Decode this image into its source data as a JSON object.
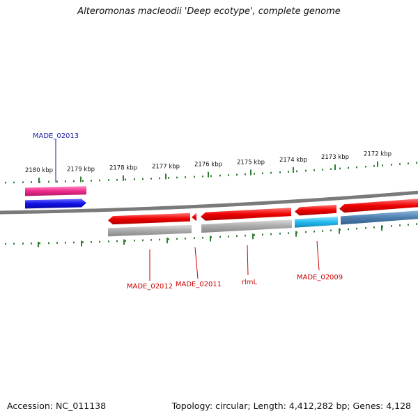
{
  "title": "Alteromonas macleodii 'Deep ecotype', complete genome",
  "accession": "Accession: NC_011138",
  "summary": "Topology: circular; Length: 4,412,282 bp; Genes: 4,128",
  "colors": {
    "backbone": "#7a7a7a",
    "tick": "#2e7d32",
    "label_red": "#cc0000",
    "label_blue": "#1a1aaa",
    "red": "#ee0000",
    "pink": "#ee2a8a",
    "blue": "#1010e6",
    "gray": "#aaaaaa",
    "cyan": "#22bbee",
    "steel": "#4e7fae"
  },
  "scale_labels": [
    "2180 kbp",
    "2179 kbp",
    "2178 kbp",
    "2177 kbp",
    "2176 kbp",
    "2175 kbp",
    "2174 kbp",
    "2173 kbp",
    "2172 kbp"
  ],
  "gene_labels": [
    {
      "text": "MADE_02013",
      "color": "blue"
    },
    {
      "text": "MADE_02012",
      "color": "red"
    },
    {
      "text": "MADE_02011",
      "color": "red"
    },
    {
      "text": "rlmL",
      "color": "red"
    },
    {
      "text": "MADE_02009",
      "color": "red"
    }
  ]
}
